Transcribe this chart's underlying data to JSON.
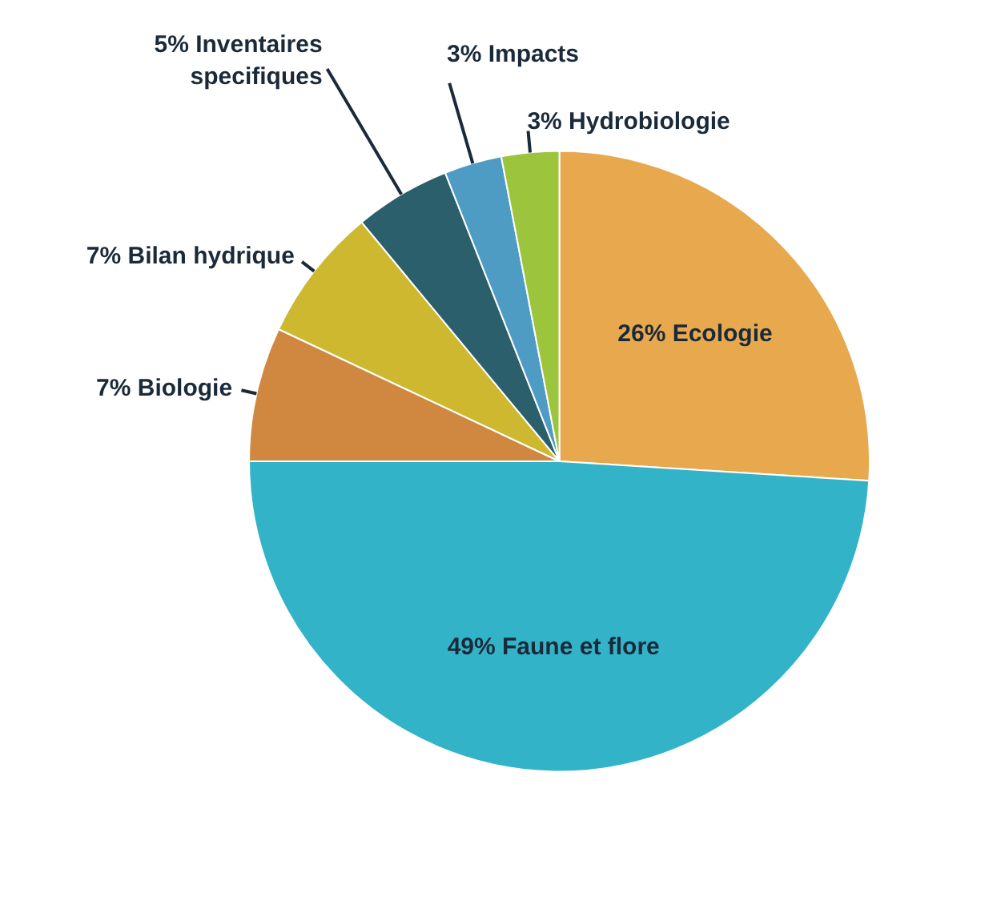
{
  "chart_data": {
    "type": "pie",
    "categories": [
      "Ecologie",
      "Faune et flore",
      "Biologie",
      "Bilan hydrique",
      "Inventaires specifiques",
      "Impacts",
      "Hydrobiologie"
    ],
    "values": [
      26,
      49,
      7,
      7,
      5,
      3,
      3
    ],
    "value_labels": [
      "26%",
      "49%",
      "7%",
      "7%",
      "5%",
      "3%",
      "3%"
    ],
    "colors": [
      "#e8a94e",
      "#33b3c8",
      "#d08840",
      "#cdb830",
      "#2a5f6b",
      "#4e9cc4",
      "#9cc43c"
    ]
  }
}
